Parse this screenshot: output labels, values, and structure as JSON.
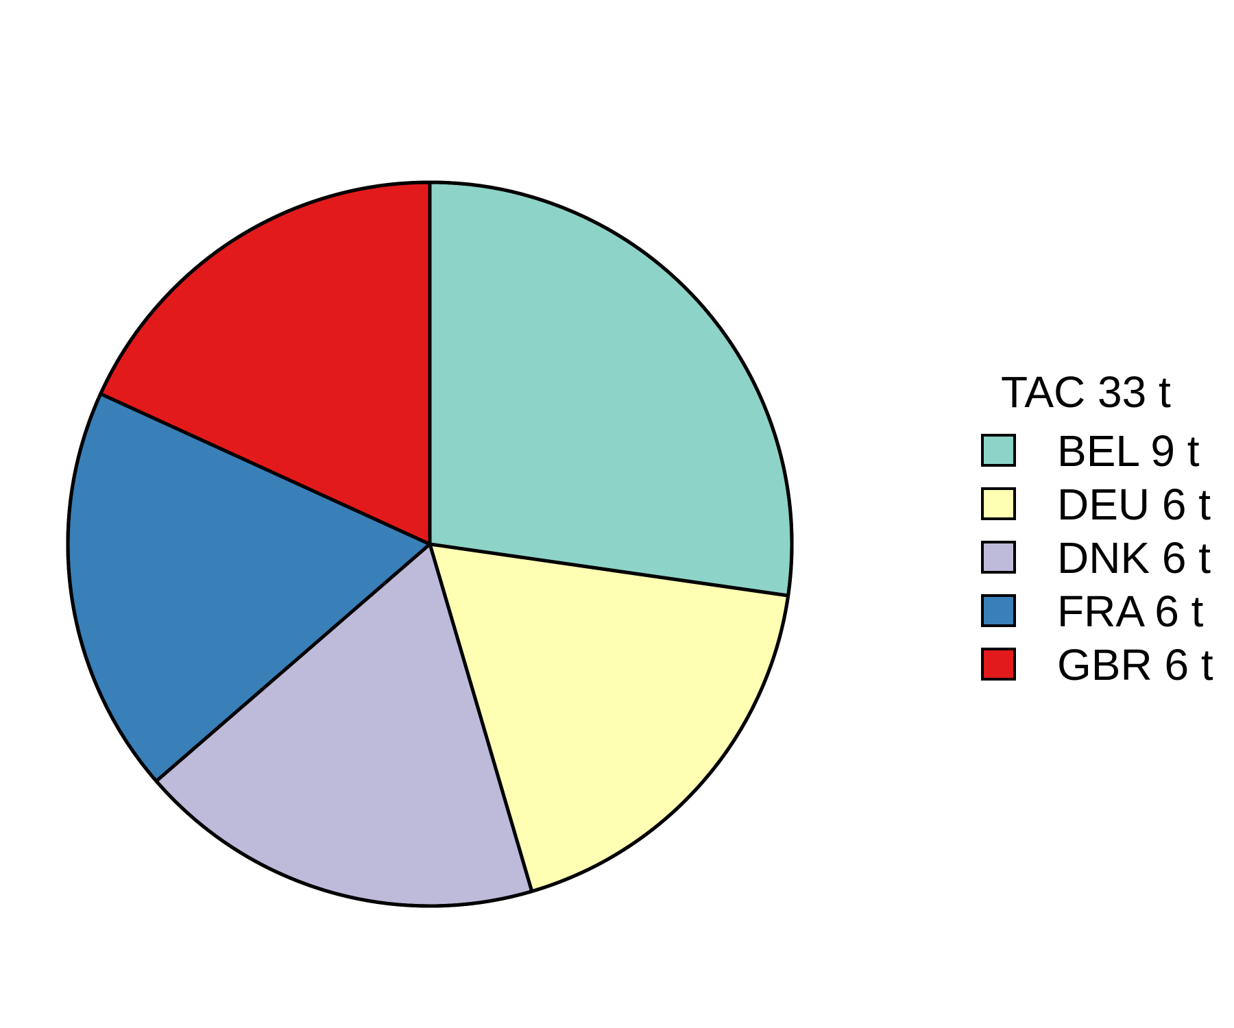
{
  "chart_data": {
    "type": "pie",
    "legend": {
      "title": "TAC 33 t",
      "placement": "right"
    },
    "slices": [
      {
        "label": "BEL 9 t",
        "category": "BEL",
        "value": 9,
        "color": "#8ED3C7"
      },
      {
        "label": "DEU 6 t",
        "category": "DEU",
        "value": 6,
        "color": "#FFFFB3"
      },
      {
        "label": "DNK 6 t",
        "category": "DNK",
        "value": 6,
        "color": "#BEBADA"
      },
      {
        "label": "FRA 6 t",
        "category": "FRA",
        "value": 6,
        "color": "#397FB8"
      },
      {
        "label": "GBR 6 t",
        "category": "GBR",
        "value": 6,
        "color": "#E31A1C"
      }
    ],
    "direction": "clockwise",
    "start": "top"
  }
}
